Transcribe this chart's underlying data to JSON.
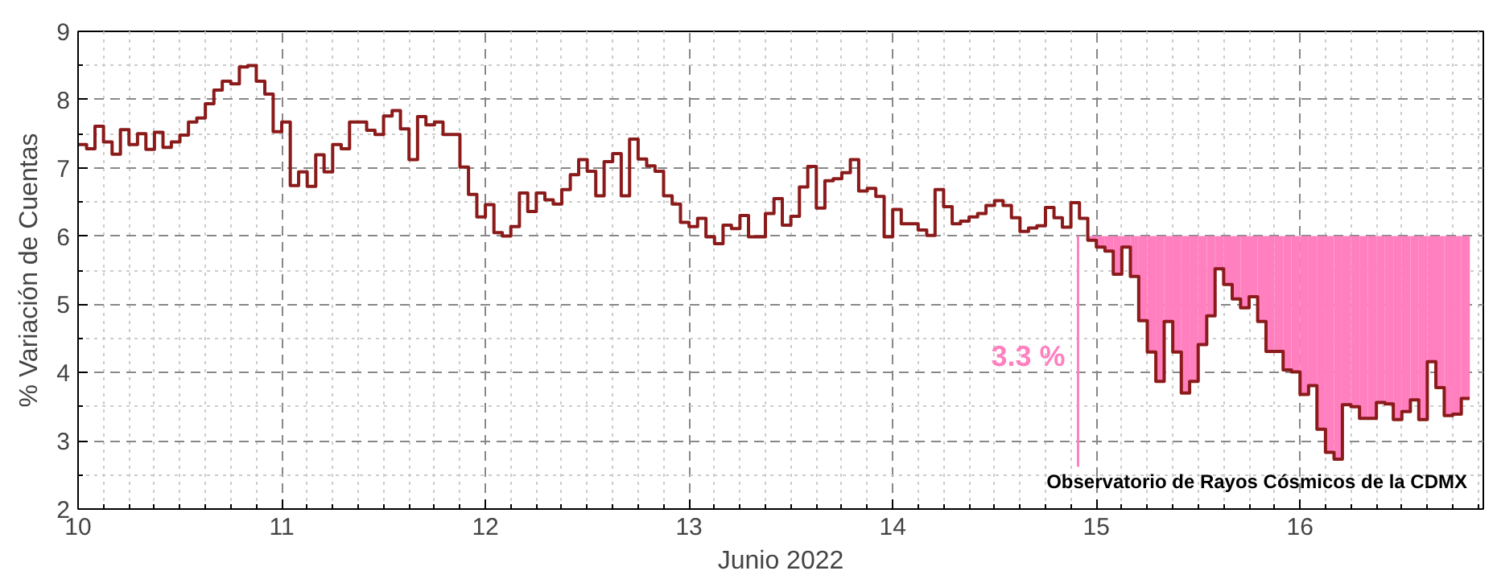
{
  "chart_data": {
    "type": "step",
    "xlabel": "Junio 2022",
    "ylabel": "% Variación de Cuentas",
    "xlim": [
      10,
      16.9
    ],
    "ylim": [
      2,
      9
    ],
    "xticks": [
      10,
      11,
      12,
      13,
      14,
      15,
      16
    ],
    "yticks": [
      2,
      3,
      4,
      5,
      6,
      7,
      8,
      9
    ],
    "grid": true,
    "annotations": [
      {
        "text": "3.3 %",
        "x": 14.91,
        "y": 4.24
      },
      "Observatorio de Rayos Cósmicos de la CDMX"
    ],
    "series": [
      {
        "color": "#8b1a1a",
        "x": [
          10,
          10.042,
          10.083,
          10.125,
          10.167,
          10.208,
          10.25,
          10.292,
          10.333,
          10.375,
          10.417,
          10.458,
          10.5,
          10.542,
          10.583,
          10.625,
          10.667,
          10.708,
          10.75,
          10.792,
          10.833,
          10.875,
          10.917,
          10.958,
          11,
          11.042,
          11.083,
          11.125,
          11.167,
          11.208,
          11.25,
          11.292,
          11.333,
          11.375,
          11.417,
          11.458,
          11.5,
          11.542,
          11.583,
          11.625,
          11.667,
          11.708,
          11.75,
          11.792,
          11.833,
          11.875,
          11.917,
          11.958,
          12,
          12.042,
          12.083,
          12.125,
          12.167,
          12.208,
          12.25,
          12.292,
          12.333,
          12.375,
          12.417,
          12.458,
          12.5,
          12.542,
          12.583,
          12.625,
          12.667,
          12.708,
          12.75,
          12.792,
          12.833,
          12.875,
          12.917,
          12.958,
          13,
          13.042,
          13.083,
          13.125,
          13.167,
          13.208,
          13.25,
          13.292,
          13.333,
          13.375,
          13.417,
          13.458,
          13.5,
          13.542,
          13.583,
          13.625,
          13.667,
          13.708,
          13.75,
          13.792,
          13.833,
          13.875,
          13.917,
          13.958,
          14,
          14.042,
          14.083,
          14.125,
          14.167,
          14.208,
          14.25,
          14.292,
          14.333,
          14.375,
          14.417,
          14.458,
          14.5,
          14.542,
          14.583,
          14.625,
          14.667,
          14.708,
          14.75,
          14.792,
          14.833,
          14.875,
          14.917,
          14.958,
          15,
          15.042,
          15.083,
          15.125,
          15.167,
          15.208,
          15.25,
          15.292,
          15.333,
          15.375,
          15.417,
          15.458,
          15.5,
          15.542,
          15.583,
          15.625,
          15.667,
          15.708,
          15.75,
          15.792,
          15.833,
          15.875,
          15.917,
          15.958,
          16,
          16.042,
          16.083,
          16.125,
          16.167,
          16.208,
          16.25,
          16.292,
          16.333,
          16.375,
          16.417,
          16.458,
          16.5,
          16.542,
          16.583,
          16.625,
          16.667,
          16.708,
          16.75,
          16.792,
          16.833
        ],
        "values": [
          7.34,
          7.28,
          7.61,
          7.38,
          7.2,
          7.56,
          7.34,
          7.5,
          7.27,
          7.52,
          7.3,
          7.38,
          7.48,
          7.67,
          7.73,
          7.94,
          8.14,
          8.27,
          8.23,
          8.48,
          8.5,
          8.27,
          8.08,
          7.53,
          7.67,
          6.74,
          6.94,
          6.73,
          7.19,
          6.94,
          7.34,
          7.28,
          7.67,
          7.67,
          7.55,
          7.49,
          7.76,
          7.84,
          7.57,
          7.12,
          7.75,
          7.63,
          7.67,
          7.49,
          7.49,
          7.01,
          6.61,
          6.28,
          6.46,
          6.05,
          6.0,
          6.14,
          6.63,
          6.36,
          6.63,
          6.53,
          6.47,
          6.68,
          6.9,
          7.12,
          6.95,
          6.59,
          7.09,
          7.21,
          6.59,
          7.42,
          7.13,
          7.03,
          6.95,
          6.59,
          6.47,
          6.2,
          6.14,
          6.26,
          5.99,
          5.89,
          6.16,
          6.11,
          6.3,
          5.99,
          5.99,
          6.33,
          6.55,
          6.16,
          6.29,
          6.72,
          7.02,
          6.41,
          6.81,
          6.84,
          6.93,
          7.12,
          6.66,
          6.7,
          6.58,
          5.99,
          6.39,
          6.18,
          6.18,
          6.09,
          6.01,
          6.68,
          6.43,
          6.18,
          6.22,
          6.28,
          6.33,
          6.45,
          6.52,
          6.45,
          6.27,
          6.07,
          6.12,
          6.15,
          6.42,
          6.27,
          6.13,
          6.49,
          6.26,
          5.94,
          5.84,
          5.78,
          5.44,
          5.84,
          5.41,
          4.76,
          4.3,
          3.87,
          4.75,
          4.3,
          3.7,
          3.87,
          4.41,
          4.83,
          5.52,
          5.29,
          5.08,
          4.95,
          5.11,
          4.75,
          4.31,
          4.31,
          4.04,
          4.01,
          3.68,
          3.81,
          3.17,
          2.83,
          2.73,
          3.53,
          3.5,
          3.33,
          3.33,
          3.56,
          3.54,
          3.31,
          3.43,
          3.6,
          3.31,
          4.16,
          3.78,
          3.37,
          3.39,
          3.62,
          3.62
        ]
      },
      {
        "type": "bar",
        "color": "#ff7fbf",
        "x": [
          14.958,
          15,
          15.042,
          15.083,
          15.125,
          15.167,
          15.208,
          15.25,
          15.292,
          15.333,
          15.375,
          15.417,
          15.458,
          15.5,
          15.542,
          15.583,
          15.625,
          15.667,
          15.708,
          15.75,
          15.792,
          15.833,
          15.875,
          15.917,
          15.958,
          16,
          16.042,
          16.083,
          16.125,
          16.167,
          16.208,
          16.25,
          16.292,
          16.333,
          16.375,
          16.417,
          16.458,
          16.5,
          16.542,
          16.583,
          16.625,
          16.667,
          16.708,
          16.75,
          16.792
        ],
        "base": [
          5.94,
          5.84,
          5.78,
          5.44,
          5.84,
          5.41,
          4.76,
          4.3,
          3.87,
          4.75,
          4.3,
          3.7,
          3.87,
          4.41,
          4.83,
          5.52,
          5.29,
          5.08,
          4.95,
          5.11,
          4.75,
          4.31,
          4.31,
          4.04,
          4.01,
          3.68,
          3.81,
          3.17,
          2.83,
          2.73,
          3.53,
          3.5,
          3.33,
          3.33,
          3.56,
          3.54,
          3.31,
          3.43,
          3.6,
          3.31,
          4.16,
          3.78,
          3.37,
          3.39,
          3.62
        ],
        "values": [
          0.06,
          0.16,
          0.22,
          0.56,
          0.16,
          0.59,
          1.24,
          1.7,
          2.13,
          1.25,
          1.7,
          2.3,
          2.13,
          1.59,
          1.17,
          0.48,
          0.71,
          0.92,
          1.05,
          0.89,
          1.25,
          1.69,
          1.69,
          1.96,
          1.99,
          2.32,
          2.19,
          2.83,
          3.17,
          3.27,
          2.47,
          2.5,
          2.67,
          2.67,
          2.44,
          2.46,
          2.69,
          2.57,
          2.4,
          2.69,
          1.84,
          2.22,
          2.63,
          2.61,
          2.38
        ]
      },
      {
        "type": "line",
        "color": "#ff7fbf",
        "x": [
          14.91,
          14.91
        ],
        "values": [
          6,
          2.62
        ]
      }
    ]
  }
}
